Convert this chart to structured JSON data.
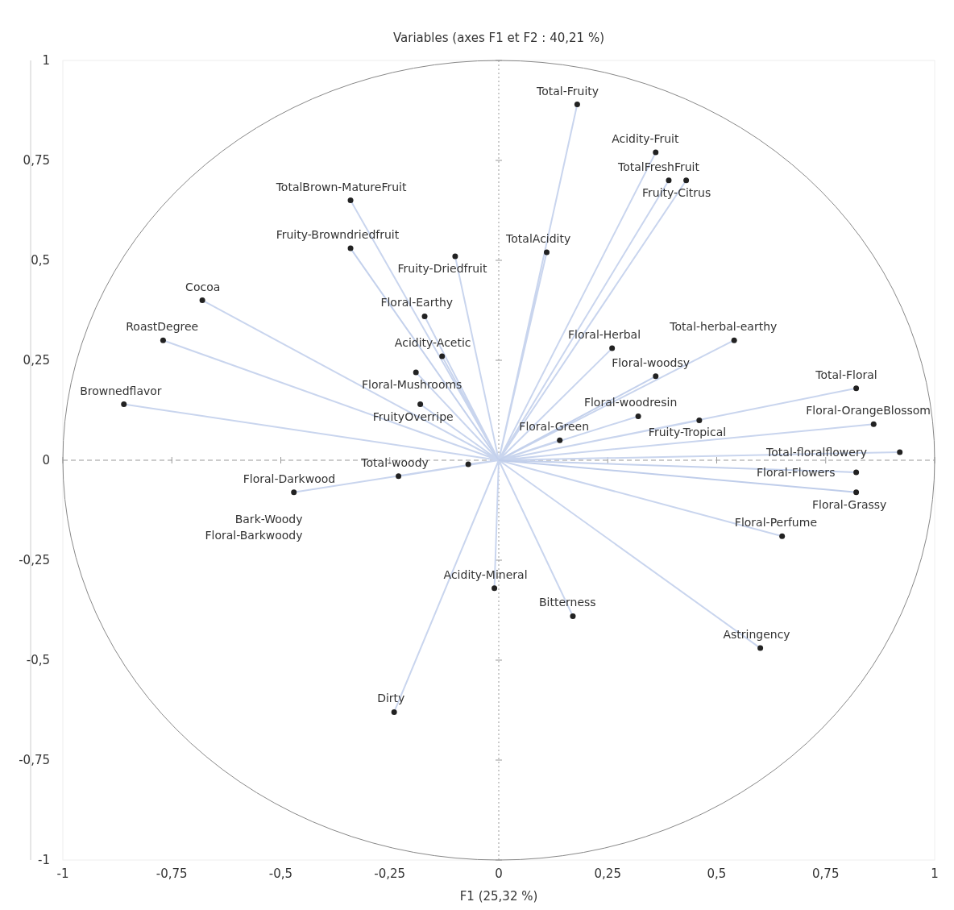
{
  "chart_data": {
    "type": "scatter",
    "title": "Variables (axes F1 et F2 : 40,21 %)",
    "xlabel": "F1 (25,32 %)",
    "xlim": [
      -1,
      1
    ],
    "ylim": [
      -1,
      1
    ],
    "xticks": [
      -1,
      {
        "value": -0.75,
        "label": "-0,75"
      },
      {
        "value": -0.5,
        "label": "-0,5"
      },
      {
        "value": -0.25,
        "label": "-0,25"
      },
      0,
      {
        "value": 0.25,
        "label": "0,25"
      },
      {
        "value": 0.5,
        "label": "0,5"
      },
      {
        "value": 0.75,
        "label": "0,75"
      },
      1
    ],
    "yticks": [
      -1,
      {
        "value": -0.75,
        "label": "-0,75"
      },
      {
        "value": -0.5,
        "label": "-0,5"
      },
      {
        "value": -0.25,
        "label": "-0,25"
      },
      0,
      {
        "value": 0.25,
        "label": "0,25"
      },
      {
        "value": 0.5,
        "label": "0,5"
      },
      {
        "value": 0.75,
        "label": "0,75"
      },
      1
    ],
    "grid": false,
    "ref_lines": [
      {
        "axis": "x",
        "value": 0,
        "color": "#999999",
        "line_style": "dotted"
      },
      {
        "axis": "y",
        "value": 0,
        "color": "#999999",
        "line_style": "dashed"
      }
    ],
    "series": [
      {
        "type": "line",
        "color": "#c9d5ee",
        "x": [
          0,
          0.18,
          null,
          0,
          0.36,
          null,
          0,
          0.39,
          null,
          0,
          0.43,
          null,
          0,
          0.11,
          null,
          0,
          -0.34,
          null,
          0,
          -0.1,
          null,
          0,
          -0.68,
          null,
          0,
          -0.77,
          null,
          0,
          -0.86,
          null,
          0,
          -0.17,
          null,
          0,
          -0.13,
          null,
          0,
          -0.19,
          null,
          0,
          -0.18,
          null,
          0,
          0.26,
          null,
          0,
          0.32,
          null,
          0,
          0.46,
          null,
          0,
          0.14,
          null,
          0,
          0.54,
          null,
          0,
          0.82,
          null,
          0,
          0.86,
          null,
          0,
          0.92,
          null,
          0,
          0.65,
          null,
          0,
          0.6,
          null,
          0,
          0.17,
          null,
          0,
          -0.01,
          null,
          0,
          -0.24,
          null,
          0,
          -0.23,
          null,
          0,
          -0.47,
          null,
          0,
          -0.07
        ],
        "values": [
          0,
          0.89,
          null,
          0,
          0.77,
          null,
          0,
          0.7,
          null,
          0,
          0.7,
          null,
          0,
          0.52,
          null,
          0,
          0.65,
          null,
          0,
          0.51,
          null,
          0,
          0.4,
          null,
          0,
          0.3,
          null,
          0,
          0.14,
          null,
          0,
          0.36,
          null,
          0,
          0.26,
          null,
          0,
          0.22,
          null,
          0,
          0.14,
          null,
          0,
          0.28,
          null,
          0,
          0.11,
          null,
          0,
          0.1,
          null,
          0,
          0.05,
          null,
          0,
          0.3,
          null,
          0,
          0.18,
          null,
          0,
          0.09,
          null,
          0,
          0.02,
          null,
          0,
          -0.19,
          null,
          0,
          -0.47,
          null,
          0,
          -0.39,
          null,
          0,
          -0.32,
          null,
          0,
          -0.63,
          null,
          0,
          -0.04,
          null,
          0,
          -0.08,
          null,
          0,
          -0.01
        ]
      },
      {
        "type": "line",
        "color": "#c4d1ec",
        "x": [
          0,
          -0.34,
          null,
          0,
          0.36,
          null,
          0,
          0.82
        ],
        "values": [
          0,
          0.53,
          null,
          0,
          0.21,
          null,
          0,
          -0.03
        ]
      },
      {
        "type": "line",
        "color": "#bfcdea",
        "x": [
          0,
          0.82
        ],
        "values": [
          0,
          -0.08
        ]
      },
      {
        "type": "scatter",
        "color": "#222222",
        "marker": "circle",
        "x": [
          0.18,
          0.36,
          0.39,
          0.43,
          0.11,
          -0.34,
          -0.34,
          -0.1,
          -0.68,
          -0.77,
          -0.86,
          -0.17,
          -0.13,
          -0.19,
          -0.18,
          0.26,
          0.36,
          0.32,
          0.46,
          0.14,
          0.54,
          0.82,
          0.86,
          0.92,
          0.82,
          0.82,
          0.65,
          0.6,
          0.17,
          -0.01,
          -0.24,
          -0.23,
          -0.47,
          -0.07
        ],
        "values": [
          0.89,
          0.77,
          0.7,
          0.7,
          0.52,
          0.65,
          0.53,
          0.51,
          0.4,
          0.3,
          0.14,
          0.36,
          0.26,
          0.22,
          0.14,
          0.28,
          0.21,
          0.11,
          0.1,
          0.05,
          0.3,
          0.18,
          0.09,
          0.02,
          -0.03,
          -0.08,
          -0.19,
          -0.47,
          -0.39,
          -0.32,
          -0.63,
          -0.04,
          -0.08,
          -0.01
        ]
      }
    ],
    "annotations": [
      {
        "text": "Total-Fruity",
        "x": 0.18,
        "y": 0.89
      },
      {
        "text": "Acidity-Fruit",
        "x": 0.36,
        "y": 0.77
      },
      {
        "text": "TotalFreshFruit",
        "x": 0.39,
        "y": 0.7
      },
      {
        "text": "Fruity-Citrus",
        "x": 0.43,
        "y": 0.7
      },
      {
        "text": "TotalAcidity",
        "x": 0.11,
        "y": 0.52
      },
      {
        "text": "TotalBrown-MatureFruit",
        "x": -0.34,
        "y": 0.65
      },
      {
        "text": "Fruity-Browndriedfruit",
        "x": -0.34,
        "y": 0.53
      },
      {
        "text": "Fruity-Driedfruit",
        "x": -0.1,
        "y": 0.51
      },
      {
        "text": "Cocoa",
        "x": -0.68,
        "y": 0.4
      },
      {
        "text": "RoastDegree",
        "x": -0.77,
        "y": 0.3
      },
      {
        "text": "Brownedflavor",
        "x": -0.86,
        "y": 0.14
      },
      {
        "text": "Floral-Earthy",
        "x": -0.17,
        "y": 0.36
      },
      {
        "text": "Acidity-Acetic",
        "x": -0.13,
        "y": 0.26
      },
      {
        "text": "Floral-Mushrooms",
        "x": -0.19,
        "y": 0.22
      },
      {
        "text": "FruityOverripe",
        "x": -0.18,
        "y": 0.14
      },
      {
        "text": "Floral-Herbal",
        "x": 0.26,
        "y": 0.28
      },
      {
        "text": "Floral-woodsy",
        "x": 0.36,
        "y": 0.21
      },
      {
        "text": "Floral-woodresin",
        "x": 0.32,
        "y": 0.11
      },
      {
        "text": "Fruity-Tropical",
        "x": 0.46,
        "y": 0.1
      },
      {
        "text": "Floral-Green",
        "x": 0.14,
        "y": 0.05
      },
      {
        "text": "Total-herbal-earthy",
        "x": 0.54,
        "y": 0.3
      },
      {
        "text": "Total-Floral",
        "x": 0.82,
        "y": 0.18
      },
      {
        "text": "Floral-OrangeBlossom",
        "x": 0.86,
        "y": 0.09
      },
      {
        "text": "Total-floralflowery",
        "x": 0.92,
        "y": 0.02
      },
      {
        "text": "Floral-Flowers",
        "x": 0.82,
        "y": -0.03
      },
      {
        "text": "Floral-Grassy",
        "x": 0.82,
        "y": -0.08
      },
      {
        "text": "Floral-Perfume",
        "x": 0.65,
        "y": -0.19
      },
      {
        "text": "Astringency",
        "x": 0.6,
        "y": -0.47
      },
      {
        "text": "Bitterness",
        "x": 0.17,
        "y": -0.39
      },
      {
        "text": "Acidity-Mineral",
        "x": -0.01,
        "y": -0.32
      },
      {
        "text": "Dirty",
        "x": -0.24,
        "y": -0.63
      },
      {
        "text": "Total-woody",
        "x": -0.23,
        "y": -0.04
      },
      {
        "text": "Floral-Darkwood",
        "x": -0.47,
        "y": -0.08
      },
      "Bark-Woody",
      "Floral-Barkwoody"
    ]
  }
}
